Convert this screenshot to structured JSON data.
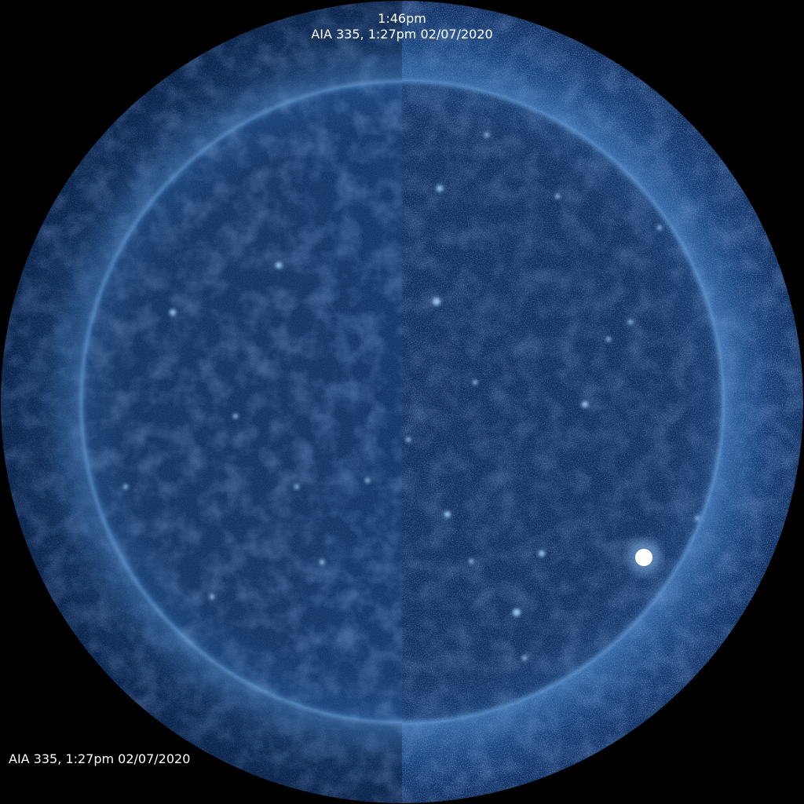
{
  "header": {
    "time": "1:46pm",
    "source": "AIA 335, 1:27pm 02/07/2020"
  },
  "footer": {
    "label": "AIA 335, 1:27pm 02/07/2020"
  },
  "colors": {
    "background": "#000000",
    "corona_dark": "#0b2553",
    "corona_mid": "#1d4a85",
    "disk": "#14366a",
    "limb_glow": "#6fa6dc",
    "active_region": "#ffffff"
  }
}
